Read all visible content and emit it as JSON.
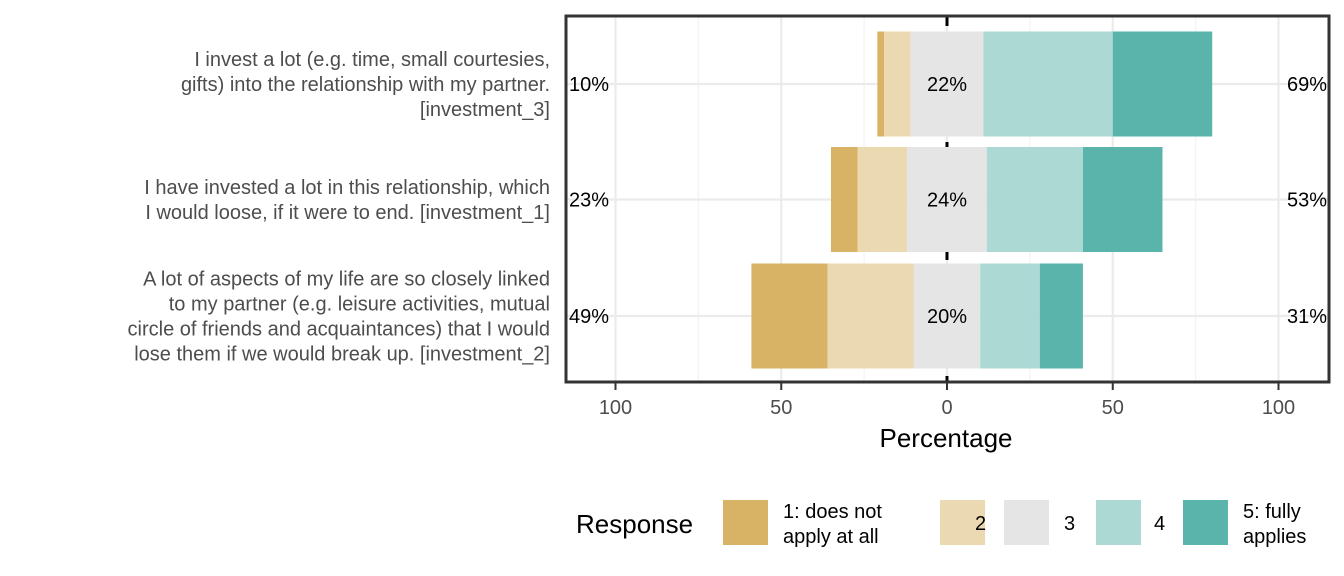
{
  "chart_data": {
    "type": "bar",
    "subtype": "diverging-stacked-likert",
    "xlabel": "Percentage",
    "ylabel": "",
    "xlim": [
      -100,
      100
    ],
    "x_ticks": [
      {
        "value": -100,
        "label": "100"
      },
      {
        "value": -50,
        "label": "50"
      },
      {
        "value": 0,
        "label": "0"
      },
      {
        "value": 50,
        "label": "50"
      },
      {
        "value": 100,
        "label": "100"
      }
    ],
    "grid": true,
    "legend": {
      "title": "Response",
      "position": "bottom",
      "entries": [
        {
          "lines": [
            "1: does not",
            "apply at all"
          ],
          "color": "#D8B365"
        },
        {
          "lines": [
            "2"
          ],
          "color": "#EBD9B2"
        },
        {
          "lines": [
            "3"
          ],
          "color": "#E5E5E5"
        },
        {
          "lines": [
            "4"
          ],
          "color": "#ADD9D4"
        },
        {
          "lines": [
            "5: fully",
            "applies"
          ],
          "color": "#5AB4AC"
        }
      ]
    },
    "items": [
      {
        "label_lines": [
          "I invest a lot (e.g. time, small courtesies,",
          "gifts) into the relationship with my partner.",
          "[investment_3]"
        ],
        "values": [
          2,
          8,
          22,
          39,
          30
        ],
        "low_label": "10%",
        "neutral_label": "22%",
        "high_label": "69%"
      },
      {
        "label_lines": [
          "I have invested a lot in this relationship, which",
          "I would loose, if it were to end. [investment_1]"
        ],
        "values": [
          8,
          15,
          24,
          29,
          24
        ],
        "low_label": "23%",
        "neutral_label": "24%",
        "high_label": "53%"
      },
      {
        "label_lines": [
          "A lot of aspects of my life are so closely linked",
          "to my partner (e.g. leisure activities, mutual",
          "circle of friends and acquaintances) that I would",
          "lose them if we would break up. [investment_2]"
        ],
        "values": [
          23,
          26,
          20,
          18,
          13
        ],
        "low_label": "49%",
        "neutral_label": "20%",
        "high_label": "31%"
      }
    ]
  }
}
